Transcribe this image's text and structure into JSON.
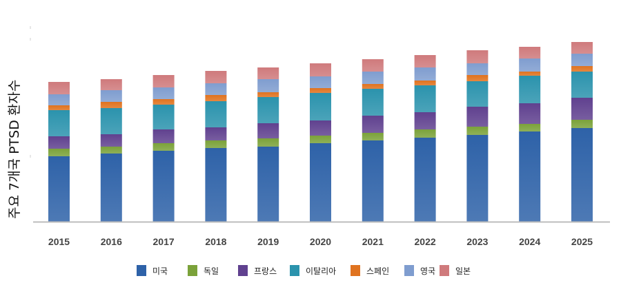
{
  "chart_data": {
    "type": "bar",
    "stacked": true,
    "title": "",
    "xlabel": "",
    "ylabel": "주요 7개국 PTSD 환자수",
    "y_ticks_labeled": false,
    "value_units": "relative (pixel height, no numeric axis shown)",
    "ylim": [
      0,
      285
    ],
    "grid": false,
    "legend_position": "bottom",
    "categories": [
      "2015",
      "2016",
      "2017",
      "2018",
      "2019",
      "2020",
      "2021",
      "2022",
      "2023",
      "2024",
      "2025"
    ],
    "series": [
      {
        "name": "미국",
        "color": "#2e62a8",
        "values": [
          95,
          99,
          103,
          107,
          109,
          114,
          118,
          122,
          126,
          131,
          136
        ]
      },
      {
        "name": "독일",
        "color": "#7ba23a",
        "values": [
          11,
          10,
          11,
          11,
          12,
          11,
          11,
          12,
          12,
          11,
          12
        ]
      },
      {
        "name": "프랑스",
        "color": "#60418f",
        "values": [
          18,
          18,
          20,
          19,
          22,
          22,
          25,
          25,
          29,
          30,
          32
        ]
      },
      {
        "name": "이탈리아",
        "color": "#2b93ad",
        "values": [
          38,
          38,
          36,
          38,
          38,
          40,
          39,
          39,
          37,
          40,
          38
        ]
      },
      {
        "name": "스페인",
        "color": "#e0731f",
        "values": [
          7,
          9,
          8,
          9,
          7,
          7,
          7,
          7,
          9,
          6,
          8
        ]
      },
      {
        "name": "영국",
        "color": "#7f9dcf",
        "values": [
          16,
          17,
          17,
          17,
          19,
          17,
          18,
          19,
          17,
          19,
          18
        ]
      },
      {
        "name": "일본",
        "color": "#cf7a7c",
        "values": [
          18,
          16,
          18,
          18,
          17,
          19,
          18,
          18,
          19,
          17,
          17
        ]
      }
    ]
  },
  "legend": {
    "items": [
      {
        "label": "미국",
        "color": "#2e62a8"
      },
      {
        "label": "독일",
        "color": "#7ba23a"
      },
      {
        "label": "프랑스",
        "color": "#60418f"
      },
      {
        "label": "이탈리아",
        "color": "#2b93ad"
      },
      {
        "label": "스페인",
        "color": "#e0731f"
      },
      {
        "label": "영국",
        "color": "#7f9dcf"
      },
      {
        "label": "일본",
        "color": "#cf7a7c"
      }
    ]
  },
  "axis": {
    "color": "#bdbdbd",
    "tick_label_color": "#444444"
  }
}
